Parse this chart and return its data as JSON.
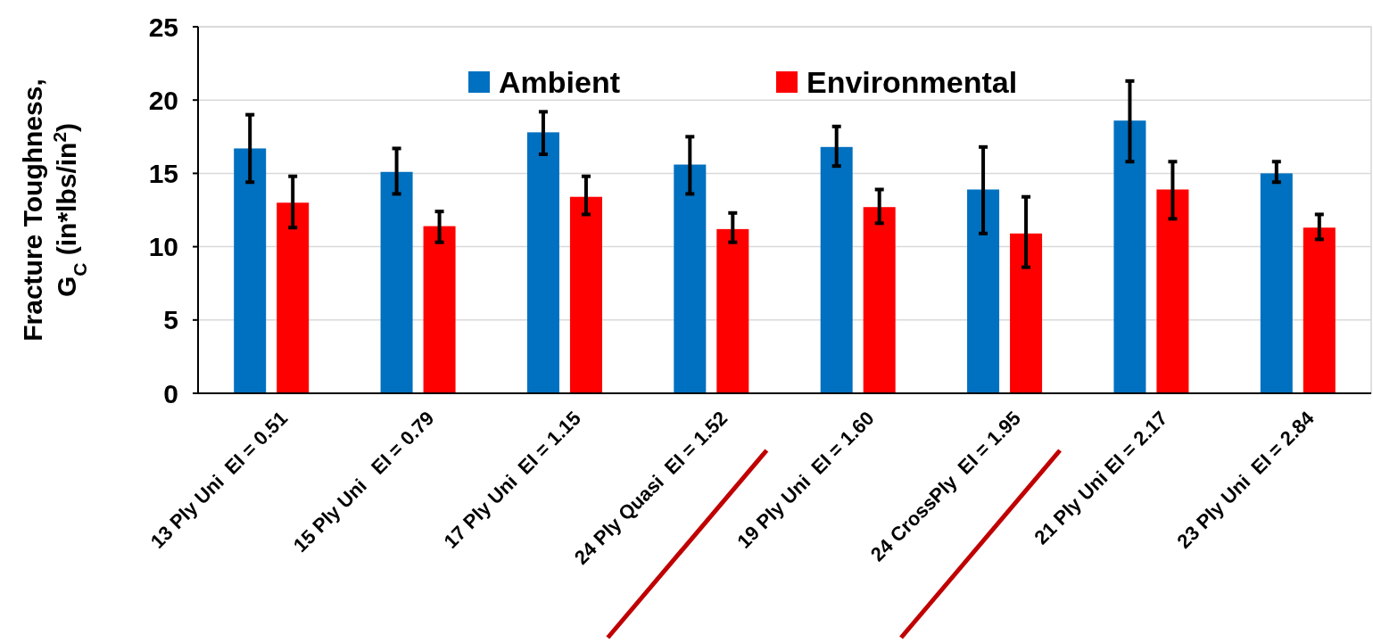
{
  "chart_data": {
    "type": "bar",
    "ylabel": "Fracture Toughness, G$_{C}$ (in*lbs/in$^{2}$)",
    "categories": [
      "13 Ply Uni  EI = 0.51",
      "15 Ply Uni   EI = 0.79",
      "17 Ply Uni  EI = 1.15",
      "24 Ply Quasi  EI = 1.52",
      "19 Ply Uni  EI = 1.60",
      "24 CrossPly  EI = 1.95",
      "21 Ply Uni EI = 2.17",
      "23 Ply Uni  EI = 2.84"
    ],
    "series": [
      {
        "name": "Ambient",
        "color": "#0070c0",
        "values": [
          16.7,
          15.1,
          17.8,
          15.6,
          16.8,
          13.9,
          18.6,
          15.0
        ],
        "errors": [
          [
            14.4,
            19.0
          ],
          [
            13.6,
            16.7
          ],
          [
            16.3,
            19.2
          ],
          [
            13.6,
            17.5
          ],
          [
            15.5,
            18.2
          ],
          [
            10.9,
            16.8
          ],
          [
            15.8,
            21.3
          ],
          [
            14.4,
            15.8
          ]
        ]
      },
      {
        "name": "Environmental",
        "color": "#ff0000",
        "values": [
          13.0,
          11.4,
          13.4,
          11.2,
          12.7,
          10.9,
          13.9,
          11.3
        ],
        "errors": [
          [
            11.3,
            14.8
          ],
          [
            10.3,
            12.4
          ],
          [
            12.2,
            14.8
          ],
          [
            10.3,
            12.3
          ],
          [
            11.6,
            13.9
          ],
          [
            8.6,
            13.4
          ],
          [
            11.9,
            15.8
          ],
          [
            10.5,
            12.2
          ]
        ]
      }
    ],
    "ylim": [
      0,
      25
    ],
    "yticks": [
      0,
      5,
      10,
      15,
      20,
      25
    ],
    "grid": "y",
    "legend": "top"
  }
}
